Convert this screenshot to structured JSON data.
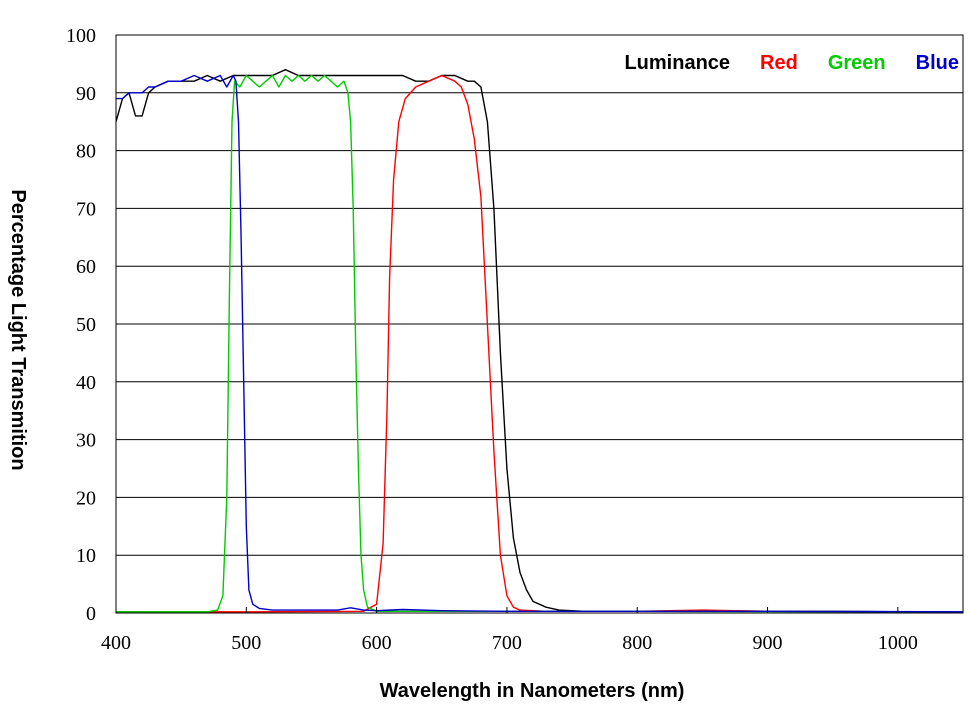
{
  "chart_data": {
    "type": "line",
    "title": "",
    "xlabel": "Wavelength in Nanometers (nm)",
    "ylabel": "Percentage Light Transmition",
    "xlim": [
      400,
      1050
    ],
    "ylim": [
      0,
      100
    ],
    "x_ticks": [
      400,
      500,
      600,
      700,
      800,
      900,
      1000
    ],
    "y_ticks": [
      0,
      10,
      20,
      30,
      40,
      50,
      60,
      70,
      80,
      90,
      100
    ],
    "grid": "horizontal",
    "legend_position": "top-right",
    "series": [
      {
        "name": "Luminance",
        "color": "#000000",
        "points": [
          [
            400,
            85
          ],
          [
            405,
            89
          ],
          [
            410,
            90
          ],
          [
            415,
            86
          ],
          [
            420,
            86
          ],
          [
            425,
            90
          ],
          [
            430,
            91
          ],
          [
            440,
            92
          ],
          [
            450,
            92
          ],
          [
            460,
            92
          ],
          [
            470,
            93
          ],
          [
            480,
            92
          ],
          [
            490,
            93
          ],
          [
            500,
            93
          ],
          [
            510,
            93
          ],
          [
            520,
            93
          ],
          [
            530,
            94
          ],
          [
            540,
            93
          ],
          [
            550,
            93
          ],
          [
            560,
            93
          ],
          [
            570,
            93
          ],
          [
            580,
            93
          ],
          [
            590,
            93
          ],
          [
            600,
            93
          ],
          [
            610,
            93
          ],
          [
            620,
            93
          ],
          [
            630,
            92
          ],
          [
            640,
            92
          ],
          [
            650,
            93
          ],
          [
            660,
            93
          ],
          [
            670,
            92
          ],
          [
            675,
            92
          ],
          [
            680,
            91
          ],
          [
            685,
            85
          ],
          [
            690,
            70
          ],
          [
            695,
            45
          ],
          [
            700,
            25
          ],
          [
            705,
            13
          ],
          [
            710,
            7
          ],
          [
            715,
            4
          ],
          [
            720,
            2
          ],
          [
            730,
            1
          ],
          [
            740,
            0.5
          ],
          [
            760,
            0.3
          ],
          [
            800,
            0.3
          ],
          [
            850,
            0.4
          ],
          [
            900,
            0.3
          ],
          [
            950,
            0.3
          ],
          [
            1000,
            0.2
          ],
          [
            1050,
            0.2
          ]
        ]
      },
      {
        "name": "Red",
        "color": "#ff0000",
        "points": [
          [
            400,
            0.2
          ],
          [
            500,
            0.2
          ],
          [
            590,
            0.3
          ],
          [
            600,
            1.5
          ],
          [
            605,
            12
          ],
          [
            608,
            35
          ],
          [
            610,
            58
          ],
          [
            613,
            75
          ],
          [
            617,
            85
          ],
          [
            622,
            89
          ],
          [
            630,
            91
          ],
          [
            640,
            92
          ],
          [
            650,
            93
          ],
          [
            660,
            92
          ],
          [
            665,
            91
          ],
          [
            670,
            88
          ],
          [
            675,
            82
          ],
          [
            680,
            72
          ],
          [
            685,
            50
          ],
          [
            690,
            28
          ],
          [
            695,
            10
          ],
          [
            700,
            3
          ],
          [
            705,
            1
          ],
          [
            710,
            0.5
          ],
          [
            730,
            0.3
          ],
          [
            800,
            0.3
          ],
          [
            850,
            0.5
          ],
          [
            900,
            0.3
          ],
          [
            1000,
            0.2
          ],
          [
            1050,
            0.2
          ]
        ]
      },
      {
        "name": "Green",
        "color": "#00cc00",
        "points": [
          [
            400,
            0.2
          ],
          [
            470,
            0.2
          ],
          [
            478,
            0.5
          ],
          [
            482,
            3
          ],
          [
            485,
            20
          ],
          [
            487,
            55
          ],
          [
            489,
            85
          ],
          [
            491,
            92
          ],
          [
            495,
            91
          ],
          [
            500,
            93
          ],
          [
            505,
            92
          ],
          [
            510,
            91
          ],
          [
            515,
            92
          ],
          [
            520,
            93
          ],
          [
            525,
            91
          ],
          [
            530,
            93
          ],
          [
            535,
            92
          ],
          [
            540,
            93
          ],
          [
            545,
            92
          ],
          [
            550,
            93
          ],
          [
            555,
            92
          ],
          [
            560,
            93
          ],
          [
            565,
            92
          ],
          [
            570,
            91
          ],
          [
            575,
            92
          ],
          [
            578,
            90
          ],
          [
            580,
            85
          ],
          [
            582,
            70
          ],
          [
            584,
            45
          ],
          [
            586,
            25
          ],
          [
            588,
            10
          ],
          [
            590,
            4
          ],
          [
            593,
            1
          ],
          [
            600,
            0.3
          ],
          [
            700,
            0.3
          ],
          [
            800,
            0.3
          ],
          [
            1050,
            0.2
          ]
        ]
      },
      {
        "name": "Blue",
        "color": "#0000cc",
        "points": [
          [
            400,
            89
          ],
          [
            405,
            89
          ],
          [
            410,
            90
          ],
          [
            415,
            90
          ],
          [
            420,
            90
          ],
          [
            425,
            91
          ],
          [
            430,
            91
          ],
          [
            440,
            92
          ],
          [
            450,
            92
          ],
          [
            460,
            93
          ],
          [
            470,
            92
          ],
          [
            480,
            93
          ],
          [
            485,
            91
          ],
          [
            490,
            93
          ],
          [
            492,
            92
          ],
          [
            494,
            85
          ],
          [
            496,
            65
          ],
          [
            498,
            40
          ],
          [
            500,
            15
          ],
          [
            502,
            4
          ],
          [
            505,
            1.5
          ],
          [
            510,
            0.8
          ],
          [
            520,
            0.5
          ],
          [
            530,
            0.5
          ],
          [
            550,
            0.5
          ],
          [
            570,
            0.5
          ],
          [
            580,
            0.9
          ],
          [
            590,
            0.5
          ],
          [
            600,
            0.4
          ],
          [
            620,
            0.6
          ],
          [
            650,
            0.4
          ],
          [
            700,
            0.3
          ],
          [
            800,
            0.3
          ],
          [
            900,
            0.3
          ],
          [
            1050,
            0.2
          ]
        ]
      }
    ]
  }
}
